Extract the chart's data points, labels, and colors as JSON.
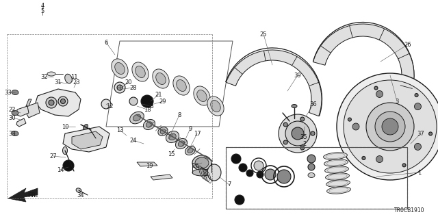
{
  "bg": "#ffffff",
  "lc": "#1a1a1a",
  "watermark": "TR0CB1910",
  "fs": 6.0,
  "figsize": [
    6.4,
    3.2
  ],
  "dpi": 100
}
